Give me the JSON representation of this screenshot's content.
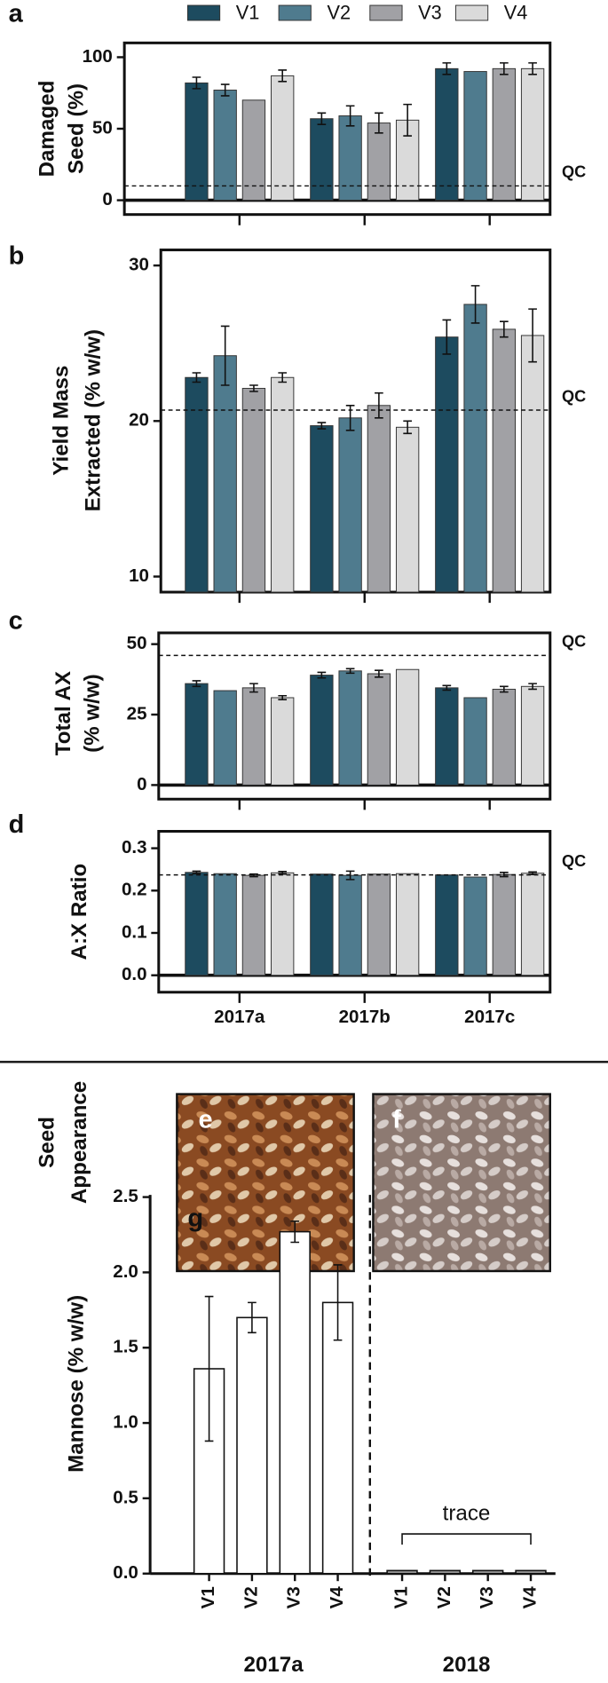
{
  "chart_data": [
    {
      "type": "bar",
      "panel_label": "a",
      "ylabel": [
        "Damaged",
        "Seed (%)"
      ],
      "categories": [
        null,
        null,
        null
      ],
      "series": [
        {
          "name": "V1",
          "color": "#1d4b5f",
          "values": [
            82,
            57,
            92
          ],
          "errors": [
            4,
            4,
            4
          ]
        },
        {
          "name": "V2",
          "color": "#4f7b8e",
          "values": [
            77,
            59,
            90
          ],
          "errors": [
            4,
            7,
            null
          ]
        },
        {
          "name": "V3",
          "color": "#a1a1a5",
          "values": [
            70,
            54,
            92
          ],
          "errors": [
            null,
            7,
            4
          ]
        },
        {
          "name": "V4",
          "color": "#dadada",
          "values": [
            87,
            56,
            92
          ],
          "errors": [
            4,
            11,
            4
          ]
        }
      ],
      "ylim": [
        -10,
        110
      ],
      "yticks": [
        0,
        50,
        100
      ],
      "reference_line": {
        "value": 10,
        "label": "QC"
      }
    },
    {
      "type": "bar",
      "panel_label": "b",
      "ylabel": [
        "Yield Mass",
        "Extracted (% w/w)"
      ],
      "categories": [
        null,
        null,
        null
      ],
      "series": [
        {
          "color": "#1d4b5f",
          "values": [
            22.8,
            19.7,
            25.4
          ],
          "errors": [
            0.3,
            0.2,
            1.1
          ]
        },
        {
          "color": "#4f7b8e",
          "values": [
            24.2,
            20.2,
            27.5
          ],
          "errors": [
            1.9,
            0.8,
            1.2
          ]
        },
        {
          "color": "#a1a1a5",
          "values": [
            22.1,
            21.0,
            25.9
          ],
          "errors": [
            0.2,
            0.8,
            0.5
          ]
        },
        {
          "color": "#dadada",
          "values": [
            22.8,
            19.6,
            25.5
          ],
          "errors": [
            0.3,
            0.4,
            1.7
          ]
        }
      ],
      "ylim": [
        9,
        31
      ],
      "yticks": [
        10,
        20,
        30
      ],
      "reference_line": {
        "value": 20.7,
        "label": "QC"
      }
    },
    {
      "type": "bar",
      "panel_label": "c",
      "ylabel": [
        "Total AX",
        "(% w/w)"
      ],
      "categories": [
        null,
        null,
        null
      ],
      "series": [
        {
          "color": "#1d4b5f",
          "values": [
            36,
            39,
            34.5
          ],
          "errors": [
            1,
            1,
            0.8
          ]
        },
        {
          "color": "#4f7b8e",
          "values": [
            33.5,
            40.5,
            31
          ],
          "errors": [
            null,
            0.8,
            null
          ]
        },
        {
          "color": "#a1a1a5",
          "values": [
            34.5,
            39.5,
            34
          ],
          "errors": [
            1.5,
            1.2,
            1
          ]
        },
        {
          "color": "#dadada",
          "values": [
            31,
            41,
            35
          ],
          "errors": [
            0.7,
            null,
            1
          ]
        }
      ],
      "ylim": [
        -5,
        54
      ],
      "yticks": [
        0,
        25,
        50
      ],
      "reference_line": {
        "value": 46,
        "label": "QC"
      }
    },
    {
      "type": "bar",
      "panel_label": "d",
      "ylabel": [
        "A:X Ratio"
      ],
      "categories": [
        "2017a",
        "2017b",
        "2017c"
      ],
      "series": [
        {
          "color": "#1d4b5f",
          "values": [
            0.243,
            0.239,
            0.237
          ],
          "errors": [
            0.003,
            null,
            null
          ]
        },
        {
          "color": "#4f7b8e",
          "values": [
            0.24,
            0.236,
            0.232
          ],
          "errors": [
            null,
            0.01,
            null
          ]
        },
        {
          "color": "#a1a1a5",
          "values": [
            0.236,
            0.239,
            0.238
          ],
          "errors": [
            0.003,
            null,
            0.005
          ]
        },
        {
          "color": "#dadada",
          "values": [
            0.242,
            0.24,
            0.241
          ],
          "errors": [
            0.003,
            null,
            0.003
          ]
        }
      ],
      "ylim": [
        -0.04,
        0.34
      ],
      "yticks": [
        {
          "value": 0,
          "label": "0.0"
        },
        0.1,
        0.2,
        0.3
      ],
      "reference_line": {
        "value": 0.237,
        "label": "QC"
      }
    },
    {
      "type": "bar",
      "panel_label": "g",
      "ylabel": [
        "Mannose (% w/w)"
      ],
      "categories": [
        "V1",
        "V2",
        "V3",
        "V4",
        "V1",
        "V2",
        "V3",
        "V4"
      ],
      "groups": [
        "2017a",
        "2018"
      ],
      "values": [
        1.36,
        1.7,
        2.27,
        1.8,
        0.02,
        0.02,
        0.02,
        0.02
      ],
      "errors": [
        0.48,
        0.1,
        0.07,
        0.25,
        null,
        null,
        null,
        null
      ],
      "colors": [
        "#ffffff",
        "#ffffff",
        "#ffffff",
        "#ffffff",
        "#9a9a9a",
        "#9a9a9a",
        "#9a9a9a",
        "#9a9a9a"
      ],
      "ylim": [
        0,
        2.5
      ],
      "yticks": [
        {
          "value": 0,
          "label": "0.0"
        },
        0.5,
        {
          "value": 1,
          "label": "1.0"
        },
        1.5,
        {
          "value": 2,
          "label": "2.0"
        },
        2.5
      ],
      "annotation": "trace"
    }
  ],
  "seed_appearance": {
    "label": [
      "Seed",
      "Appearance"
    ],
    "panels": [
      "e",
      "f"
    ]
  }
}
